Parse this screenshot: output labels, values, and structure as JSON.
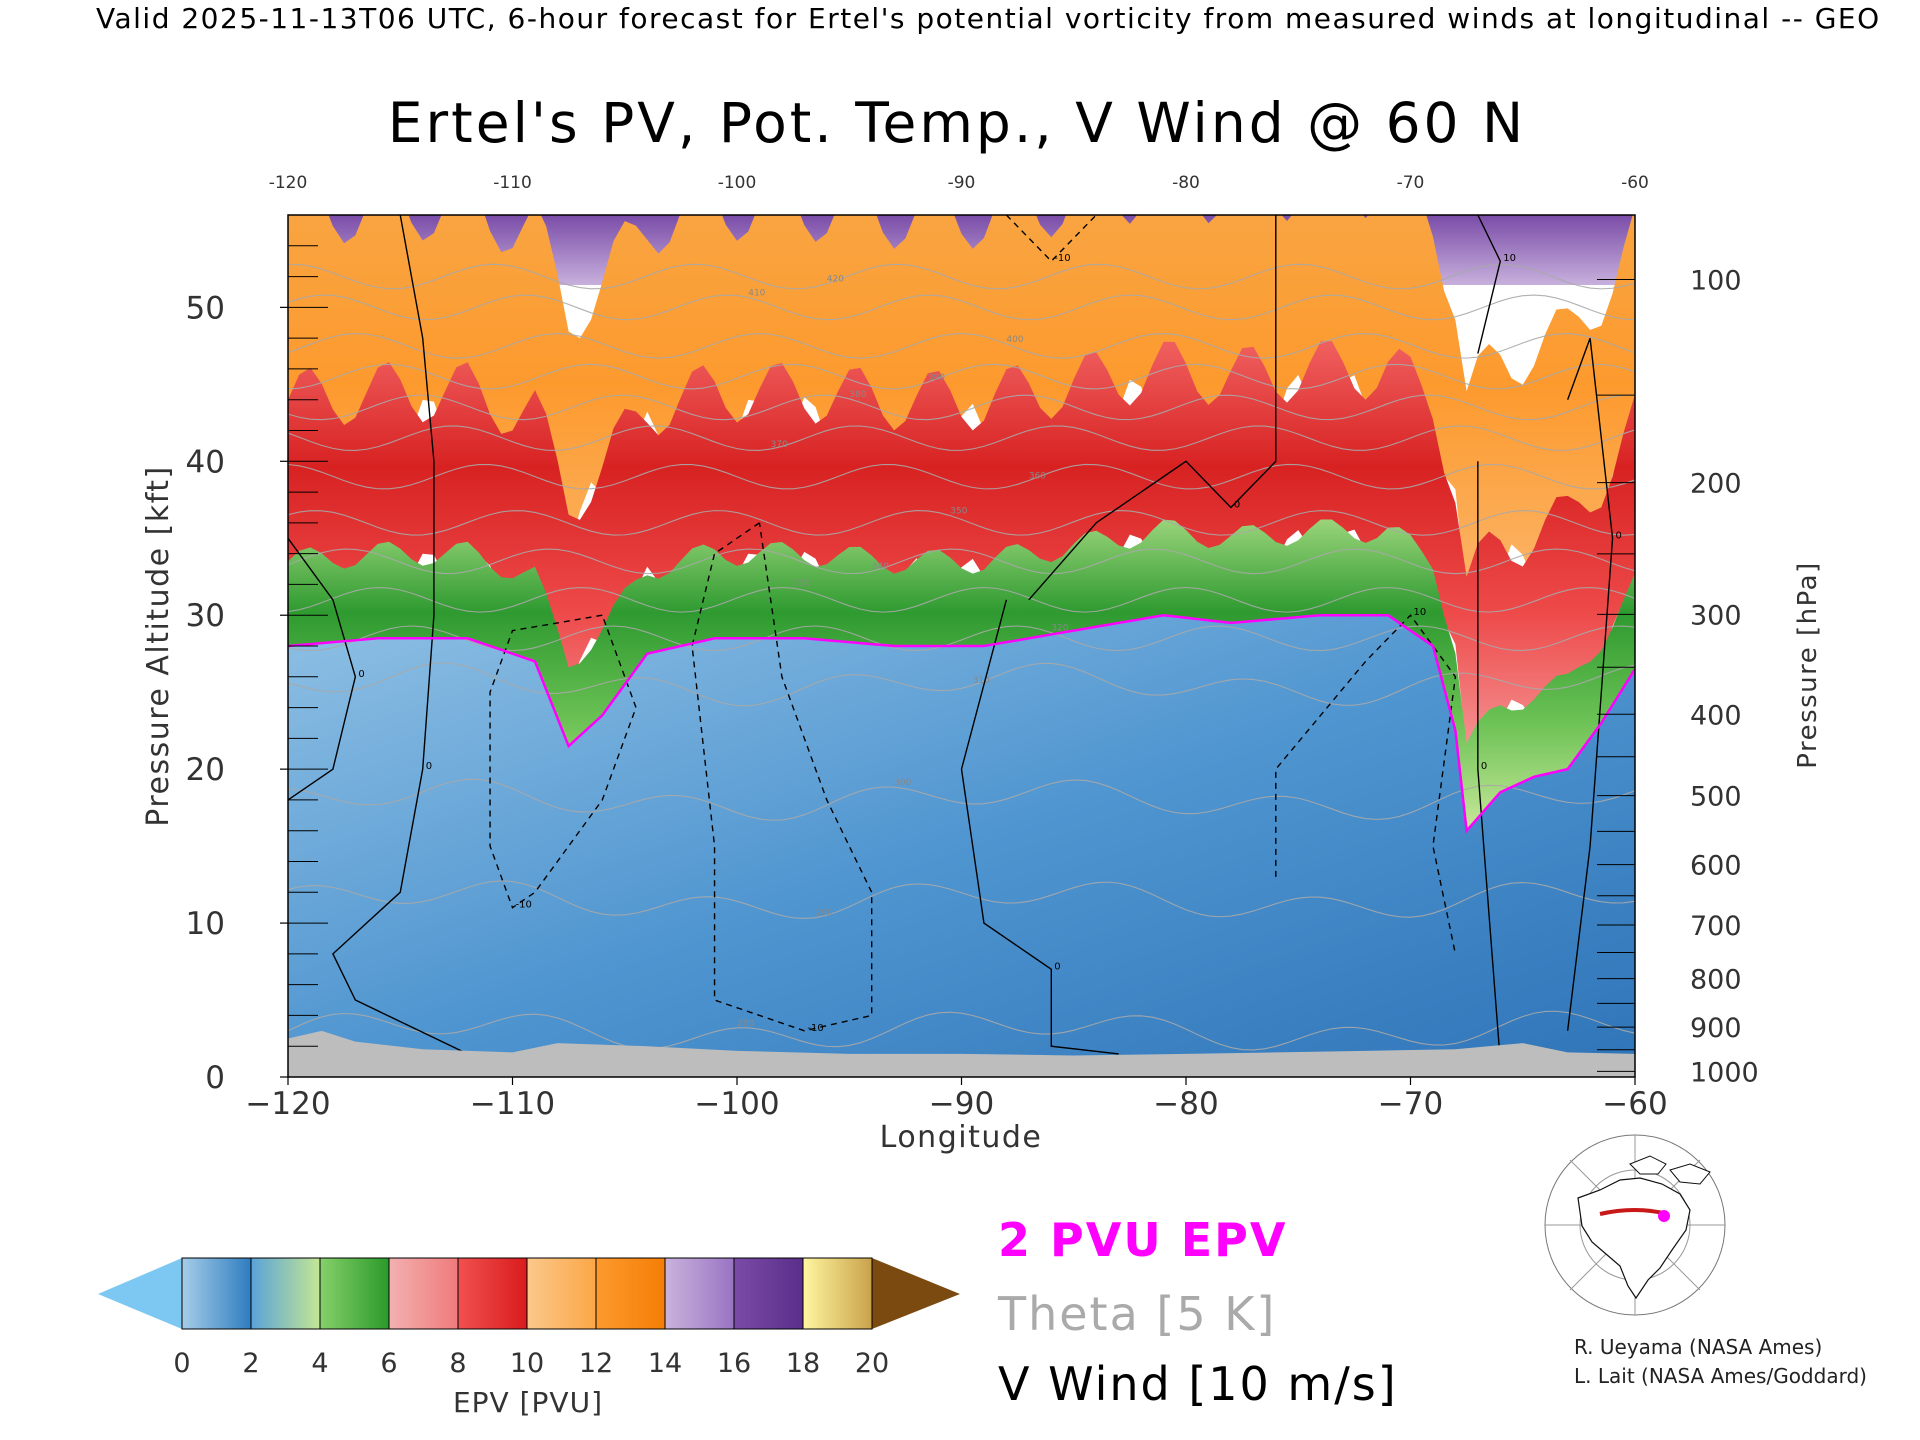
{
  "header": {
    "valid_line": "Valid 2025-11-13T06 UTC, 6-hour forecast for Ertel's potential vorticity from measured winds at longitudinal -- GEO"
  },
  "chart_data": {
    "type": "heatmap",
    "title": "Ertel's PV, Pot. Temp., V Wind @ 60 N",
    "xlabel": "Longitude",
    "ylabel_left": "Pressure Altitude [kft]",
    "ylabel_right": "Pressure [hPa]",
    "xlim": [
      -120,
      -60
    ],
    "ylim": [
      0,
      56
    ],
    "x_ticks": [
      -120,
      -110,
      -100,
      -90,
      -80,
      -70,
      -60
    ],
    "x_tick_labels": [
      "−120",
      "−110",
      "−100",
      "−90",
      "−80",
      "−70",
      "−60"
    ],
    "x_top_tick_labels": [
      "-120",
      "-110",
      "-100",
      "-90",
      "-80",
      "-70",
      "-60"
    ],
    "y_ticks": [
      0,
      10,
      20,
      30,
      40,
      50
    ],
    "y_tick_labels": [
      "0",
      "10",
      "20",
      "30",
      "40",
      "50"
    ],
    "pressure_ticks": [
      {
        "hPa": 100,
        "label": "100"
      },
      {
        "hPa": 200,
        "label": "200"
      },
      {
        "hPa": 300,
        "label": "300"
      },
      {
        "hPa": 400,
        "label": "400"
      },
      {
        "hPa": 500,
        "label": "500"
      },
      {
        "hPa": 600,
        "label": "600"
      },
      {
        "hPa": 700,
        "label": "700"
      },
      {
        "hPa": 800,
        "label": "800"
      },
      {
        "hPa": 900,
        "label": "900"
      },
      {
        "hPa": 1000,
        "label": "1000"
      }
    ],
    "tropopause_2pvu_kft": [
      {
        "lon": -120,
        "z": 28.0
      },
      {
        "lon": -116,
        "z": 28.5
      },
      {
        "lon": -112,
        "z": 28.5
      },
      {
        "lon": -109,
        "z": 27.0
      },
      {
        "lon": -107.5,
        "z": 21.5
      },
      {
        "lon": -106,
        "z": 23.5
      },
      {
        "lon": -104,
        "z": 27.5
      },
      {
        "lon": -101,
        "z": 28.5
      },
      {
        "lon": -97,
        "z": 28.5
      },
      {
        "lon": -93,
        "z": 28.0
      },
      {
        "lon": -89,
        "z": 28.0
      },
      {
        "lon": -85,
        "z": 29.0
      },
      {
        "lon": -81,
        "z": 30.0
      },
      {
        "lon": -78,
        "z": 29.5
      },
      {
        "lon": -74,
        "z": 30.0
      },
      {
        "lon": -71,
        "z": 30.0
      },
      {
        "lon": -69,
        "z": 28.0
      },
      {
        "lon": -68,
        "z": 22.5
      },
      {
        "lon": -67.5,
        "z": 16.0
      },
      {
        "lon": -66,
        "z": 18.5
      },
      {
        "lon": -64.5,
        "z": 19.5
      },
      {
        "lon": -63,
        "z": 20.0
      },
      {
        "lon": -61.5,
        "z": 23.0
      },
      {
        "lon": -60,
        "z": 26.5
      }
    ],
    "theta_levels_K": [
      280,
      290,
      300,
      310,
      320,
      330,
      340,
      350,
      360,
      370,
      380,
      390,
      400,
      410,
      420
    ],
    "theta_labels": [
      "280",
      "290",
      "300",
      "310",
      "320",
      "330",
      "340",
      "350",
      "360",
      "370",
      "380",
      "390",
      "400",
      "410",
      "420"
    ],
    "theta_base_kft": [
      3.0,
      11.5,
      18.0,
      25.5,
      28.5,
      31.0,
      33.5,
      36.0,
      39.0,
      41.5,
      43.5,
      45.5,
      47.5,
      50.0,
      52.0
    ],
    "vwind_contour_labels": [
      "0",
      "-10",
      "10"
    ],
    "colorbar": {
      "label": "EPV [PVU]",
      "ticks": [
        "0",
        "2",
        "4",
        "6",
        "8",
        "10",
        "12",
        "14",
        "16",
        "18",
        "20"
      ],
      "bins": [
        {
          "from": 0,
          "to": 2,
          "colors": [
            "#a6cde8",
            "#2e7dc0"
          ]
        },
        {
          "from": 2,
          "to": 4,
          "colors": [
            "#5aa3d8",
            "#c4e694"
          ]
        },
        {
          "from": 4,
          "to": 6,
          "colors": [
            "#86d06a",
            "#2b9a2b"
          ]
        },
        {
          "from": 6,
          "to": 8,
          "colors": [
            "#f3b0b0",
            "#f07b7b"
          ]
        },
        {
          "from": 8,
          "to": 10,
          "colors": [
            "#f15050",
            "#d91c1c"
          ]
        },
        {
          "from": 10,
          "to": 12,
          "colors": [
            "#fbc88c",
            "#fba746"
          ]
        },
        {
          "from": 12,
          "to": 14,
          "colors": [
            "#fd9a2e",
            "#f47e05"
          ]
        },
        {
          "from": 14,
          "to": 16,
          "colors": [
            "#c9b3dc",
            "#9a74c4"
          ]
        },
        {
          "from": 16,
          "to": 18,
          "colors": [
            "#7a4ca8",
            "#5a2e8a"
          ]
        },
        {
          "from": 18,
          "to": 20,
          "colors": [
            "#fff6a0",
            "#c9a24a"
          ]
        }
      ],
      "under_color": "#7cc8f2",
      "over_color": "#7b4a10"
    },
    "legend": {
      "pvu_label": "2 PVU EPV",
      "pvu_color": "#ff00ff",
      "theta_label": "Theta [5 K]",
      "theta_color": "#aaaaaa",
      "wind_label": "V Wind [10 m/s]"
    },
    "credits": [
      "R. Ueyama (NASA Ames)",
      "L. Lait (NASA Ames/Goddard)"
    ]
  }
}
